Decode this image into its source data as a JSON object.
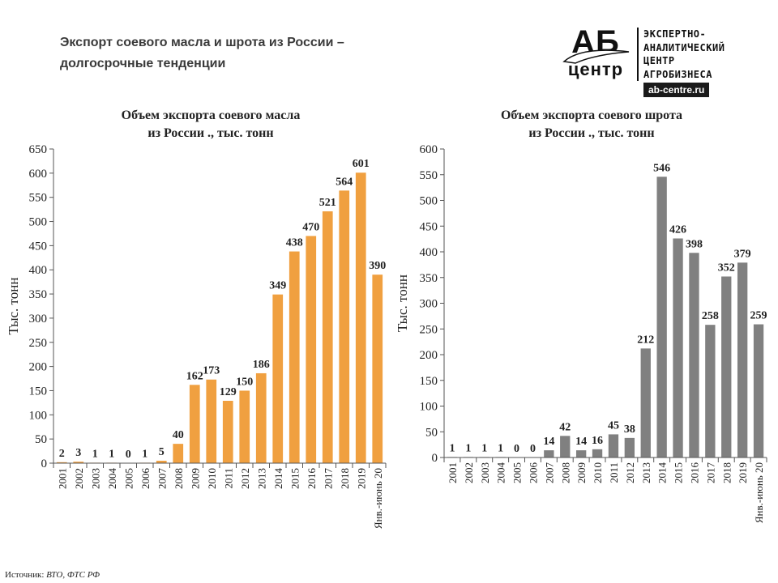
{
  "header": {
    "title_line1": "Экспорт соевого масла и шрота из России –",
    "title_line2": "долгосрочные тенденции"
  },
  "logo": {
    "big": "АБ",
    "small": "центр",
    "line1": "ЭКСПЕРТНО-",
    "line2": "АНАЛИТИЧЕСКИЙ",
    "line3": "ЦЕНТР",
    "line4": "АГРОБИЗНЕСА",
    "url": "ab-centre.ru"
  },
  "footer": {
    "source_label": "Источник:",
    "source_value": "ВТО, ФТС РФ"
  },
  "chart_data": [
    {
      "type": "bar",
      "title_line1": "Объем экспорта соевого масла",
      "title_line2": "из России ., тыс. тонн",
      "ylabel": "Тыс. тонн",
      "xlabel": "",
      "ylim": [
        0,
        650
      ],
      "yticks": [
        0,
        50,
        100,
        150,
        200,
        250,
        300,
        350,
        400,
        450,
        500,
        550,
        600,
        650
      ],
      "color": "#F0A040",
      "categories": [
        "2001",
        "2002",
        "2003",
        "2004",
        "2005",
        "2006",
        "2007",
        "2008",
        "2009",
        "2010",
        "2011",
        "2012",
        "2013",
        "2014",
        "2015",
        "2016",
        "2017",
        "2018",
        "2019",
        "Янв.-июнь 20"
      ],
      "values": [
        2,
        3,
        1,
        1,
        0,
        1,
        5,
        40,
        162,
        173,
        129,
        150,
        186,
        349,
        438,
        470,
        521,
        564,
        601,
        390
      ],
      "grid": false,
      "legend": "none"
    },
    {
      "type": "bar",
      "title_line1": "Объем экспорта соевого шрота",
      "title_line2": "из России ., тыс. тонн",
      "ylabel": "Тыс. тонн",
      "xlabel": "",
      "ylim": [
        0,
        600
      ],
      "yticks": [
        0,
        50,
        100,
        150,
        200,
        250,
        300,
        350,
        400,
        450,
        500,
        550,
        600
      ],
      "color": "#808080",
      "categories": [
        "2001",
        "2002",
        "2003",
        "2004",
        "2005",
        "2006",
        "2007",
        "2008",
        "2009",
        "2010",
        "2011",
        "2012",
        "2013",
        "2014",
        "2015",
        "2016",
        "2017",
        "2018",
        "2019",
        "Янв.-июнь 20"
      ],
      "values": [
        1,
        1,
        1,
        1,
        0,
        0,
        14,
        42,
        14,
        16,
        45,
        38,
        212,
        546,
        426,
        398,
        258,
        352,
        379,
        259
      ],
      "grid": false,
      "legend": "none"
    }
  ]
}
